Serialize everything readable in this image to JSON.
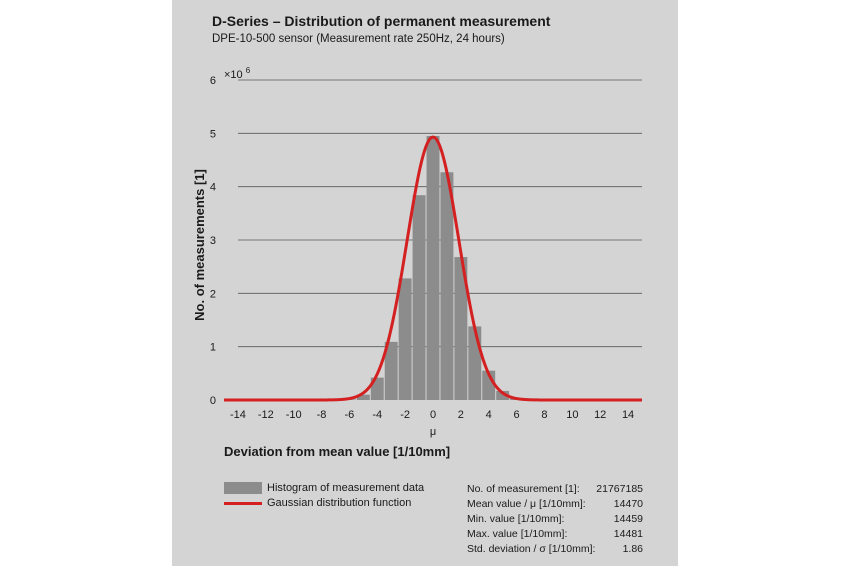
{
  "chart_data": {
    "type": "bar",
    "title": "D-Series – Distribution of permanent measurement",
    "subtitle": "DPE-10-500 sensor (Measurement rate 250Hz, 24 hours)",
    "xlabel": "Deviation from mean value [1/10mm]",
    "x_axis_symbol": "μ",
    "ylabel": "No. of measurements [1]",
    "y_multiplier": "×10",
    "y_exponent": "6",
    "xlim": [
      -15,
      15
    ],
    "ylim": [
      0,
      6
    ],
    "x_ticks": [
      -14,
      -12,
      -10,
      -8,
      -6,
      -4,
      -2,
      0,
      2,
      4,
      6,
      8,
      10,
      12,
      14
    ],
    "x_tick_labels": [
      "-14",
      "-12",
      "-10",
      "-8",
      "-6",
      "-4",
      "-2",
      "0",
      "2",
      "4",
      "6",
      "8",
      "10",
      "12",
      "14"
    ],
    "y_ticks": [
      0,
      1,
      2,
      3,
      4,
      5,
      6
    ],
    "y_tick_labels": [
      "0",
      "1",
      "2",
      "3",
      "4",
      "5",
      "6"
    ],
    "grid": true,
    "series": [
      {
        "name": "Histogram of measurement data",
        "type": "bar",
        "color": "#8c8c8c",
        "x": [
          -6,
          -5,
          -4,
          -3,
          -2,
          -1,
          0,
          1,
          2,
          3,
          4,
          5,
          6
        ],
        "values": [
          0.01,
          0.1,
          0.42,
          1.09,
          2.28,
          3.84,
          4.95,
          4.27,
          2.68,
          1.38,
          0.55,
          0.17,
          0.03
        ]
      },
      {
        "name": "Gaussian distribution function",
        "type": "line",
        "color": "#d42020",
        "mean": 0,
        "std_dev": 1.86,
        "peak": 4.93
      }
    ]
  },
  "legend": {
    "histogram_label": "Histogram of measurement data",
    "gaussian_label": "Gaussian distribution function"
  },
  "stats": [
    {
      "label": "No. of measurement [1]:",
      "value": "21767185"
    },
    {
      "label": "Mean value / μ [1/10mm]:",
      "value": "14470"
    },
    {
      "label": "Min. value [1/10mm]:",
      "value": "14459"
    },
    {
      "label": "Max. value [1/10mm]:",
      "value": "14481"
    },
    {
      "label": "Std. deviation / σ [1/10mm]:",
      "value": "1.86"
    }
  ]
}
